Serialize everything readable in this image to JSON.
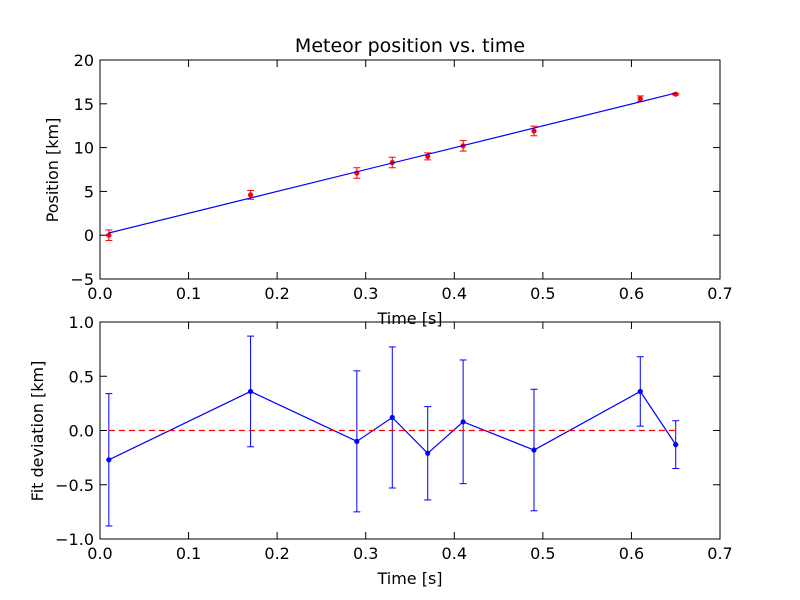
{
  "chart_data": [
    {
      "type": "scatter",
      "title": "Meteor position vs. time",
      "xlabel": "Time [s]",
      "ylabel": "Position [km]",
      "xlim": [
        0,
        0.7
      ],
      "ylim": [
        -5,
        20
      ],
      "xticks": [
        0.0,
        0.1,
        0.2,
        0.3,
        0.4,
        0.5,
        0.6,
        0.7
      ],
      "xtick_labels": [
        "0.0",
        "0.1",
        "0.2",
        "0.3",
        "0.4",
        "0.5",
        "0.6",
        "0.7"
      ],
      "yticks": [
        -5,
        0,
        5,
        10,
        15,
        20
      ],
      "ytick_labels": [
        "−5",
        "0",
        "5",
        "10",
        "15",
        "20"
      ],
      "series": [
        {
          "kind": "errorbar-points",
          "color": "#ff0000",
          "x": [
            0.01,
            0.17,
            0.29,
            0.33,
            0.37,
            0.41,
            0.49,
            0.61,
            0.65
          ],
          "y": [
            0.0,
            4.6,
            7.1,
            8.3,
            9.0,
            10.2,
            11.9,
            15.6,
            16.1
          ],
          "yerr": [
            0.6,
            0.5,
            0.6,
            0.6,
            0.4,
            0.6,
            0.55,
            0.3,
            0.1
          ]
        },
        {
          "kind": "line",
          "color": "#0000ff",
          "x": [
            0.01,
            0.65
          ],
          "y": [
            0.25,
            16.23
          ]
        }
      ]
    },
    {
      "type": "line",
      "title": "",
      "xlabel": "Time [s]",
      "ylabel": "Fit deviation [km]",
      "xlim": [
        0,
        0.7
      ],
      "ylim": [
        -1.0,
        1.0
      ],
      "xticks": [
        0.0,
        0.1,
        0.2,
        0.3,
        0.4,
        0.5,
        0.6,
        0.7
      ],
      "xtick_labels": [
        "0.0",
        "0.1",
        "0.2",
        "0.3",
        "0.4",
        "0.5",
        "0.6",
        "0.7"
      ],
      "yticks": [
        -1.0,
        -0.5,
        0.0,
        0.5,
        1.0
      ],
      "ytick_labels": [
        "−1.0",
        "−0.5",
        "0.0",
        "0.5",
        "1.0"
      ],
      "series": [
        {
          "kind": "errorbar-line",
          "color": "#0000ff",
          "x": [
            0.01,
            0.17,
            0.29,
            0.33,
            0.37,
            0.41,
            0.49,
            0.61,
            0.65
          ],
          "y": [
            -0.27,
            0.36,
            -0.1,
            0.12,
            -0.21,
            0.08,
            -0.18,
            0.36,
            -0.13
          ],
          "yerr": [
            0.61,
            0.51,
            0.65,
            0.65,
            0.43,
            0.57,
            0.56,
            0.32,
            0.22
          ]
        },
        {
          "kind": "reference-line",
          "color": "#ff0000",
          "style": "dashed",
          "x": [
            0.01,
            0.65
          ],
          "y": [
            0.0,
            0.0
          ]
        }
      ]
    }
  ]
}
